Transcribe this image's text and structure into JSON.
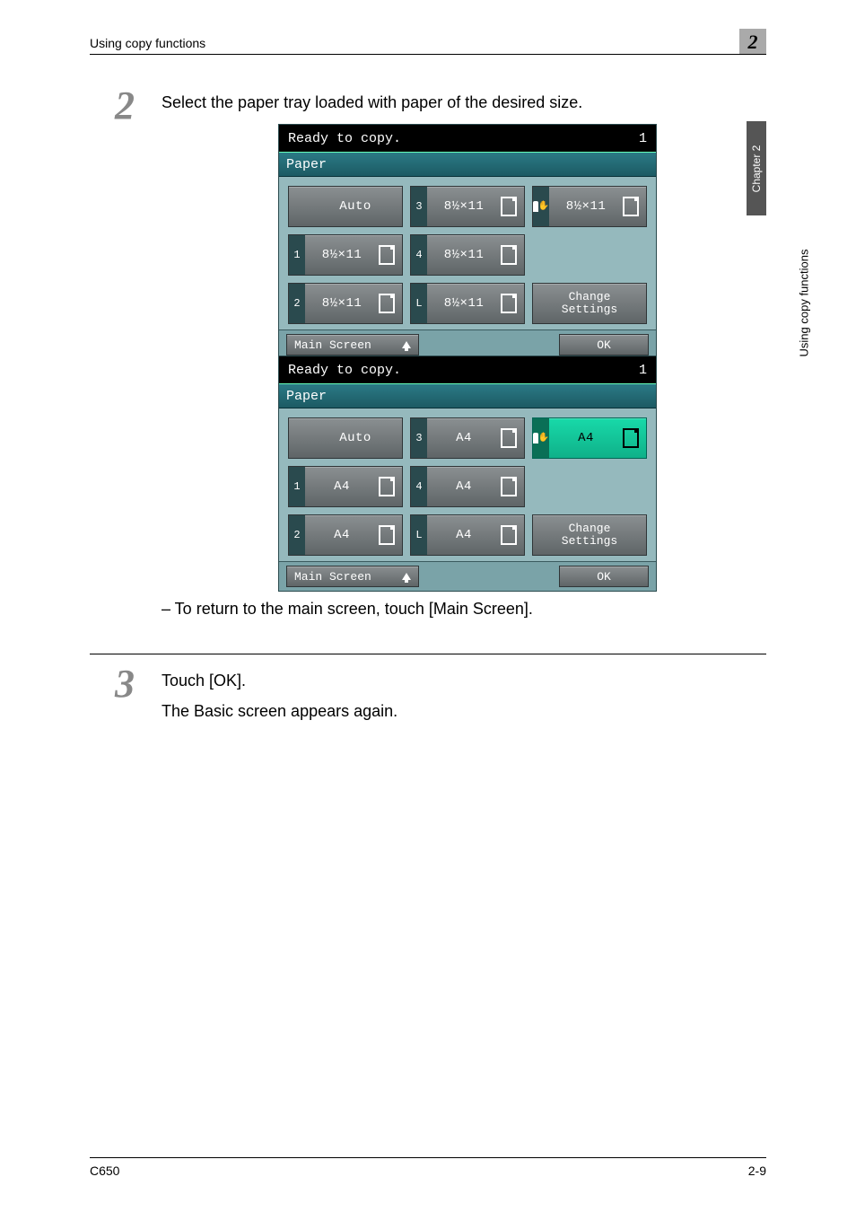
{
  "header": {
    "section": "Using copy functions",
    "chapter_num": "2"
  },
  "side": {
    "tab": "Chapter 2",
    "label": "Using copy functions"
  },
  "step2": {
    "num": "2",
    "text": "Select the paper tray loaded with paper of the desired size."
  },
  "step3": {
    "num": "3",
    "line1": "Touch [OK].",
    "line2": "The Basic screen appears again."
  },
  "bullet": "–  To return to the main screen, touch [Main Screen].",
  "footer": {
    "left": "C650",
    "right": "2-9"
  },
  "panel_common": {
    "ready": "Ready to copy.",
    "count": "1",
    "title": "Paper",
    "main_screen": "Main Screen",
    "ok": "OK",
    "change1": "Change",
    "change2": "Settings",
    "auto": "Auto",
    "hand_icon": "✋"
  },
  "panel1": {
    "size": "8½×11",
    "trays": [
      {
        "tag": "",
        "label": "Auto",
        "orient": false,
        "style": "auto"
      },
      {
        "tag": "3",
        "label": "8½×11",
        "orient": true,
        "style": ""
      },
      {
        "tag": "",
        "label": "8½×11",
        "orient": true,
        "style": "hand"
      },
      {
        "tag": "1",
        "label": "8½×11",
        "orient": true,
        "style": ""
      },
      {
        "tag": "4",
        "label": "8½×11",
        "orient": true,
        "style": ""
      },
      {
        "tag": "",
        "label": "",
        "orient": false,
        "style": "empty"
      },
      {
        "tag": "2",
        "label": "8½×11",
        "orient": true,
        "style": ""
      },
      {
        "tag": "L",
        "label": "8½×11",
        "orient": true,
        "style": ""
      },
      {
        "tag": "",
        "label": "change",
        "orient": false,
        "style": "change"
      }
    ]
  },
  "panel2": {
    "size": "A4",
    "trays": [
      {
        "tag": "",
        "label": "Auto",
        "orient": false,
        "style": "auto"
      },
      {
        "tag": "3",
        "label": "A4",
        "orient": true,
        "style": ""
      },
      {
        "tag": "",
        "label": "A4",
        "orient": true,
        "style": "hand selected"
      },
      {
        "tag": "1",
        "label": "A4",
        "orient": true,
        "style": ""
      },
      {
        "tag": "4",
        "label": "A4",
        "orient": true,
        "style": ""
      },
      {
        "tag": "",
        "label": "",
        "orient": false,
        "style": "empty"
      },
      {
        "tag": "2",
        "label": "A4",
        "orient": true,
        "style": ""
      },
      {
        "tag": "L",
        "label": "A4",
        "orient": true,
        "style": ""
      },
      {
        "tag": "",
        "label": "change",
        "orient": false,
        "style": "change"
      }
    ]
  }
}
